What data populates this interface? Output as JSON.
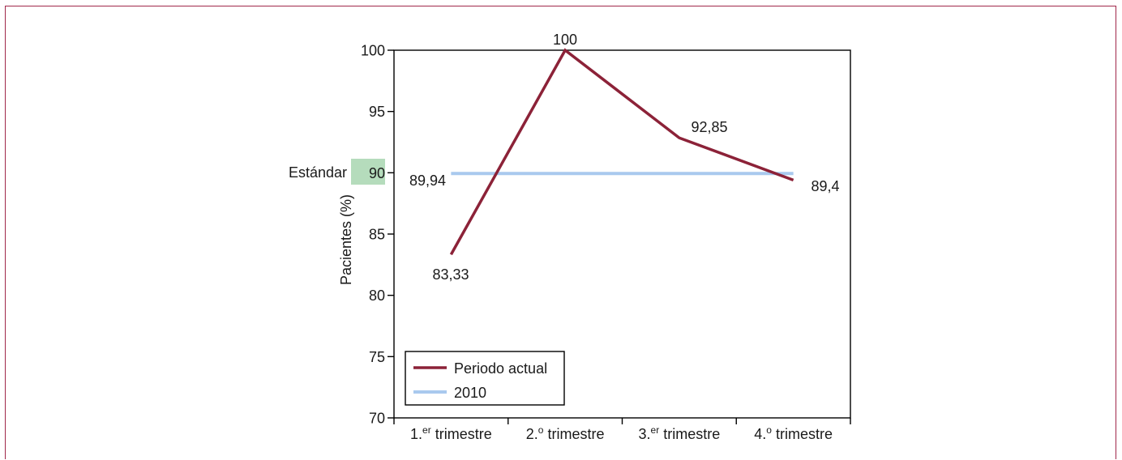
{
  "chart_data": {
    "type": "line",
    "categories": [
      "1.",
      "2.",
      "3.",
      "4."
    ],
    "category_sup": [
      "er",
      "o",
      "er",
      "o"
    ],
    "category_word": "trimestre",
    "ylabel": "Pacientes (%)",
    "ylim": [
      70,
      100
    ],
    "yticks": [
      70,
      75,
      80,
      85,
      90,
      95,
      100
    ],
    "grid": false,
    "legend_position": "bottom-left",
    "standard": {
      "label": "Estándar",
      "value": 90,
      "color": "#b5dcbc"
    },
    "series": [
      {
        "name": "Periodo actual",
        "color": "#8c2238",
        "values": [
          83.33,
          100,
          92.85,
          89.4
        ],
        "labels": [
          "83,33",
          "100",
          "92,85",
          "89,4"
        ]
      },
      {
        "name": "2010",
        "color": "#a9c9ee",
        "values": [
          89.94,
          89.94,
          89.94,
          89.94
        ],
        "labels": [
          "89,94"
        ]
      }
    ]
  }
}
